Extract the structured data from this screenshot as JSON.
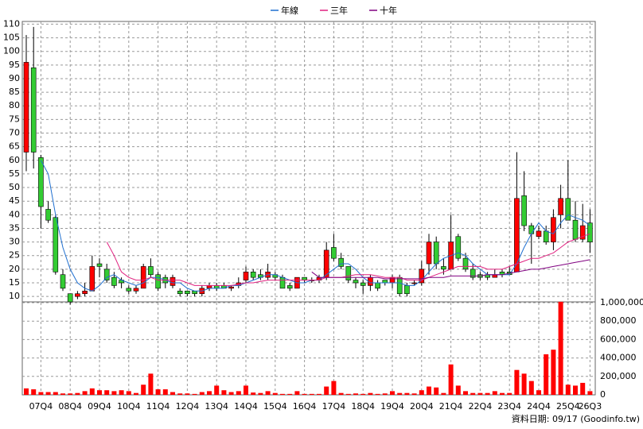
{
  "chart_data": {
    "type": "candlestick",
    "grid": true,
    "categories": [
      null,
      null,
      "07Q4",
      null,
      null,
      null,
      "08Q4",
      null,
      null,
      null,
      "09Q4",
      null,
      null,
      null,
      "10Q4",
      null,
      null,
      null,
      "11Q4",
      null,
      null,
      null,
      "12Q4",
      null,
      null,
      null,
      "13Q4",
      null,
      null,
      null,
      "14Q4",
      null,
      null,
      null,
      "15Q4",
      null,
      null,
      null,
      "16Q4",
      null,
      null,
      null,
      "17Q4",
      null,
      null,
      null,
      "18Q4",
      null,
      null,
      null,
      "19Q4",
      null,
      null,
      null,
      "20Q4",
      null,
      null,
      null,
      "21Q4",
      null,
      null,
      null,
      "22Q4",
      null,
      null,
      null,
      "23Q4",
      null,
      null,
      null,
      "24Q4",
      null,
      null,
      null,
      "25Q4",
      null,
      null,
      "26Q3"
    ],
    "open": [
      63,
      94,
      61,
      42,
      39,
      18,
      11,
      10,
      11,
      12,
      22,
      20,
      17,
      16,
      13,
      12,
      13,
      21,
      18,
      17,
      14,
      12,
      12,
      12,
      11,
      13,
      14,
      14,
      13,
      14,
      16,
      19,
      18,
      17,
      18,
      17,
      14,
      13,
      17,
      16,
      16,
      17,
      28,
      24,
      21,
      16,
      15,
      14,
      15,
      16,
      15,
      17,
      14,
      15,
      15,
      22,
      30,
      21,
      20,
      32,
      24,
      20,
      18,
      18,
      17,
      19,
      19,
      19,
      47,
      36,
      32,
      34,
      30,
      40,
      46,
      38,
      31,
      37
    ],
    "high": [
      106,
      109,
      62,
      45,
      40,
      20,
      11,
      12,
      15,
      25,
      24,
      22,
      19,
      17,
      14,
      14,
      22,
      24,
      19,
      18,
      18,
      13,
      12,
      12,
      14,
      15,
      15,
      15,
      14,
      17,
      21,
      20,
      20,
      22,
      19,
      18,
      15,
      17,
      17,
      17,
      18,
      30,
      33,
      26,
      21,
      17,
      16,
      18,
      16,
      16,
      18,
      18,
      15,
      16,
      23,
      33,
      32,
      24,
      40,
      33,
      26,
      22,
      19,
      19,
      20,
      20,
      21,
      63,
      56,
      37,
      36,
      36,
      42,
      51,
      60,
      45,
      44,
      42
    ],
    "low": [
      56,
      57,
      35,
      37,
      18,
      12,
      7,
      9,
      10,
      12,
      17,
      15,
      13,
      13,
      11,
      11,
      13,
      17,
      12,
      13,
      13,
      10,
      10,
      10,
      10,
      12,
      12,
      13,
      12,
      13,
      15,
      16,
      16,
      16,
      16,
      13,
      12,
      13,
      15,
      15,
      15,
      16,
      23,
      20,
      15,
      13,
      11,
      12,
      12,
      14,
      13,
      10,
      10,
      14,
      14,
      18,
      20,
      18,
      20,
      23,
      19,
      16,
      16,
      16,
      17,
      17,
      18,
      19,
      34,
      22,
      31,
      29,
      27,
      35,
      38,
      30,
      30,
      26
    ],
    "close": [
      96,
      63,
      43,
      38,
      19,
      13,
      8,
      11,
      12,
      21,
      21,
      16,
      14,
      15,
      12,
      13,
      21,
      18,
      13,
      15,
      17,
      11,
      11,
      11,
      13,
      14,
      13,
      13,
      13.5,
      15,
      19,
      17,
      17,
      19,
      17,
      13,
      13,
      17,
      16,
      16,
      17,
      27,
      24,
      21,
      16,
      15,
      14,
      17,
      13,
      15,
      17,
      11,
      11,
      15,
      20,
      30,
      22,
      20,
      30,
      24,
      20,
      17,
      17,
      17,
      18,
      18,
      18,
      46,
      36,
      33,
      34,
      30,
      39,
      46,
      38,
      31,
      36,
      30
    ],
    "up_color": "#ff0000",
    "down_color": "#33cc33",
    "series": [
      {
        "name": "年線",
        "color": "#1f6fd0",
        "values": [
          null,
          null,
          60,
          55,
          40,
          28,
          20,
          15,
          13,
          12,
          14,
          17,
          18,
          16,
          15,
          14,
          15,
          17,
          17,
          16,
          15,
          15,
          13,
          12,
          12,
          13,
          13,
          13,
          14,
          14,
          15,
          16,
          17,
          18,
          18,
          17,
          16,
          15,
          15,
          16,
          16,
          18,
          20,
          22,
          22,
          20,
          17,
          15,
          15,
          15,
          15,
          15,
          14,
          14,
          16,
          19,
          22,
          24,
          25,
          26,
          25,
          22,
          20,
          18,
          18,
          18,
          18,
          22,
          28,
          33,
          37,
          34,
          33,
          37,
          40,
          39,
          38,
          36
        ]
      },
      {
        "name": "三年",
        "color": "#e0207f",
        "values": [
          null,
          null,
          null,
          null,
          null,
          null,
          null,
          null,
          null,
          null,
          null,
          30,
          25,
          19,
          17,
          16,
          16,
          17,
          16,
          16,
          16,
          16,
          15,
          14,
          14,
          14,
          14,
          14,
          14,
          14.5,
          15,
          15,
          15.5,
          16,
          16,
          16,
          16,
          16,
          16,
          16,
          16,
          17,
          17,
          17,
          17.5,
          18,
          18,
          18,
          17.5,
          17,
          17,
          17,
          16,
          16,
          16,
          17,
          18,
          19,
          20,
          21,
          21,
          21,
          21,
          20,
          20,
          20,
          21,
          22,
          23,
          24,
          24,
          25,
          26,
          28,
          30,
          31,
          32,
          33
        ]
      },
      {
        "name": "十年",
        "color": "#800080",
        "values": [
          null,
          null,
          null,
          null,
          null,
          null,
          null,
          null,
          null,
          null,
          null,
          null,
          null,
          null,
          null,
          null,
          null,
          null,
          null,
          null,
          null,
          null,
          null,
          null,
          null,
          null,
          null,
          null,
          null,
          null,
          null,
          null,
          null,
          null,
          null,
          null,
          null,
          null,
          null,
          19,
          17,
          17,
          17,
          17,
          17,
          17,
          17,
          17,
          17,
          16.5,
          16.5,
          16.5,
          16.5,
          16.5,
          16.5,
          17,
          17,
          17,
          17.5,
          17.5,
          17.5,
          17.5,
          17.5,
          18,
          18,
          18,
          18.5,
          19,
          19.5,
          20,
          20,
          20.5,
          21,
          21.5,
          22,
          22.5,
          23,
          23.5
        ]
      }
    ],
    "ylim": [
      8,
      111
    ],
    "yticks": [
      10,
      15,
      20,
      25,
      30,
      35,
      40,
      45,
      50,
      55,
      60,
      65,
      70,
      75,
      80,
      85,
      90,
      95,
      100,
      105,
      110
    ],
    "volume": {
      "color": "#ff0000",
      "values": [
        70000,
        60000,
        30000,
        30000,
        30000,
        15000,
        15000,
        20000,
        40000,
        70000,
        50000,
        50000,
        40000,
        50000,
        40000,
        20000,
        110000,
        230000,
        60000,
        60000,
        30000,
        15000,
        15000,
        10000,
        30000,
        40000,
        100000,
        50000,
        30000,
        40000,
        100000,
        25000,
        20000,
        40000,
        20000,
        10000,
        10000,
        40000,
        10000,
        10000,
        10000,
        90000,
        150000,
        20000,
        10000,
        15000,
        10000,
        20000,
        10000,
        15000,
        40000,
        20000,
        20000,
        15000,
        50000,
        90000,
        80000,
        20000,
        330000,
        100000,
        40000,
        20000,
        20000,
        20000,
        40000,
        20000,
        20000,
        270000,
        230000,
        150000,
        50000,
        440000,
        490000,
        1010000,
        110000,
        100000,
        130000,
        40000
      ],
      "ylim": [
        0,
        1000000
      ],
      "yticks": [
        0,
        {
          "value": 200000,
          "label": "200,000"
        },
        {
          "value": 400000,
          "label": "400,000"
        },
        {
          "value": 600000,
          "label": "600,000"
        },
        {
          "value": 800000,
          "label": "800,000"
        },
        {
          "value": 1000000,
          "label": "1,000,000"
        }
      ]
    },
    "footnote": "資料日期: 09/17 (Goodinfo.tw)"
  }
}
